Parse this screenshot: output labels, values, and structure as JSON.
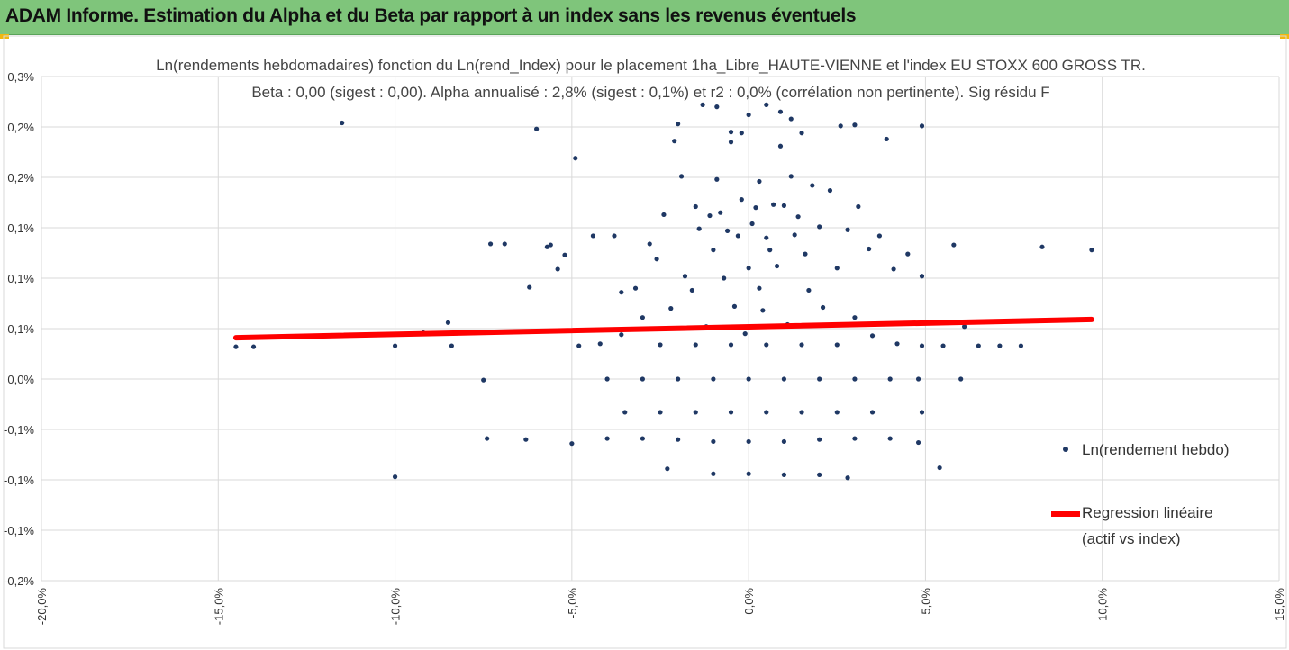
{
  "header": {
    "title": "ADAM Informe. Estimation du Alpha et du Beta par rapport à un index sans les revenus éventuels",
    "background_color": "#7fc57b"
  },
  "chart_data": {
    "type": "scatter",
    "title_line1": "Ln(rendements hebdomadaires) fonction du Ln(rend_Index) pour le placement 1ha_Libre_HAUTE-VIENNE et l'index EU STOXX 600 GROSS TR.",
    "title_line2": "Beta : 0,00 (sigest : 0,00). Alpha annualisé : 2,8% (sigest : 0,1%) et r2 : 0,0% (corrélation non pertinente). Sig résidu F",
    "xlim": [
      -20,
      15
    ],
    "ylim": [
      -0.2,
      0.3
    ],
    "x_ticks": [
      -20,
      -15,
      -10,
      -5,
      0,
      5,
      10,
      15
    ],
    "x_tick_labels": [
      "-20,0%",
      "-15,0%",
      "-10,0%",
      "-5,0%",
      "0,0%",
      "5,0%",
      "10,0%",
      "15,0%"
    ],
    "y_ticks": [
      0.3,
      0.25,
      0.2,
      0.15,
      0.1,
      0.05,
      0.0,
      -0.05,
      -0.1,
      -0.15,
      -0.2
    ],
    "y_tick_labels": [
      "0,3%",
      "0,2%",
      "0,2%",
      "0,1%",
      "0,1%",
      "0,1%",
      "0,0%",
      "-0,1%",
      "-0,1%",
      "-0,1%",
      "-0,2%"
    ],
    "grid": true,
    "legend_position": "right",
    "scatter_color": "#1f3864",
    "regression_color": "#ff0000",
    "regression": {
      "name": "Regression linéaire",
      "name_line2": "(actif vs index)",
      "x": [
        -14.5,
        9.7
      ],
      "y": [
        0.041,
        0.059
      ]
    },
    "series": [
      {
        "name": "Ln(rendement hebdo)",
        "points": [
          [
            -14.5,
            0.032
          ],
          [
            -14.0,
            0.032
          ],
          [
            -10.0,
            0.033
          ],
          [
            -9.2,
            0.046
          ],
          [
            -8.4,
            0.033
          ],
          [
            -8.5,
            0.056
          ],
          [
            -7.3,
            0.134
          ],
          [
            -6.9,
            0.134
          ],
          [
            -7.5,
            -0.001
          ],
          [
            -7.4,
            -0.059
          ],
          [
            -6.2,
            0.091
          ],
          [
            -6.3,
            -0.06
          ],
          [
            -5.7,
            0.131
          ],
          [
            -5.6,
            0.133
          ],
          [
            -5.4,
            0.109
          ],
          [
            -5.2,
            0.123
          ],
          [
            -4.9,
            0.219
          ],
          [
            -5.0,
            -0.064
          ],
          [
            -4.4,
            0.142
          ],
          [
            -3.8,
            0.142
          ],
          [
            -3.6,
            0.086
          ],
          [
            -3.2,
            0.09
          ],
          [
            -2.8,
            0.134
          ],
          [
            -2.6,
            0.119
          ],
          [
            -2.4,
            0.163
          ],
          [
            -2.1,
            0.236
          ],
          [
            -1.9,
            0.201
          ],
          [
            -1.8,
            0.102
          ],
          [
            -1.4,
            0.149
          ],
          [
            -1.3,
            0.272
          ],
          [
            -1.1,
            0.162
          ],
          [
            -0.9,
            0.198
          ],
          [
            -0.6,
            0.147
          ],
          [
            -0.5,
            0.245
          ],
          [
            -0.2,
            0.178
          ],
          [
            0.1,
            0.154
          ],
          [
            0.3,
            0.196
          ],
          [
            0.5,
            0.14
          ],
          [
            0.7,
            0.173
          ],
          [
            0.9,
            0.231
          ],
          [
            1.2,
            0.201
          ],
          [
            1.4,
            0.161
          ],
          [
            1.6,
            0.124
          ],
          [
            1.8,
            0.192
          ],
          [
            2.0,
            0.151
          ],
          [
            2.3,
            0.187
          ],
          [
            2.5,
            0.11
          ],
          [
            2.8,
            0.148
          ],
          [
            3.1,
            0.171
          ],
          [
            3.4,
            0.129
          ],
          [
            3.7,
            0.142
          ],
          [
            4.1,
            0.109
          ],
          [
            4.5,
            0.124
          ],
          [
            4.9,
            0.102
          ],
          [
            5.8,
            0.133
          ],
          [
            8.3,
            0.131
          ],
          [
            9.7,
            0.128
          ],
          [
            -11.5,
            0.254
          ],
          [
            -6.0,
            0.248
          ],
          [
            -2.0,
            0.253
          ],
          [
            -0.9,
            0.27
          ],
          [
            0.0,
            0.262
          ],
          [
            0.5,
            0.272
          ],
          [
            1.2,
            0.258
          ],
          [
            2.6,
            0.251
          ],
          [
            3.0,
            0.252
          ],
          [
            3.9,
            0.238
          ],
          [
            4.9,
            0.251
          ],
          [
            -0.2,
            0.244
          ],
          [
            0.9,
            0.265
          ],
          [
            -0.5,
            0.235
          ],
          [
            1.5,
            0.244
          ],
          [
            -0.8,
            0.165
          ],
          [
            0.2,
            0.17
          ],
          [
            -1.5,
            0.171
          ],
          [
            1.0,
            0.172
          ],
          [
            -0.3,
            0.142
          ],
          [
            0.6,
            0.128
          ],
          [
            -1.0,
            0.128
          ],
          [
            1.3,
            0.143
          ],
          [
            0.0,
            0.11
          ],
          [
            -0.7,
            0.1
          ],
          [
            0.8,
            0.112
          ],
          [
            -1.6,
            0.088
          ],
          [
            1.7,
            0.088
          ],
          [
            0.3,
            0.09
          ],
          [
            -2.2,
            0.07
          ],
          [
            2.1,
            0.071
          ],
          [
            -0.4,
            0.072
          ],
          [
            0.4,
            0.068
          ],
          [
            -3.0,
            0.061
          ],
          [
            3.0,
            0.061
          ],
          [
            -1.2,
            0.052
          ],
          [
            1.1,
            0.054
          ],
          [
            -3.6,
            0.044
          ],
          [
            3.5,
            0.043
          ],
          [
            -0.1,
            0.045
          ],
          [
            -4.2,
            0.035
          ],
          [
            4.2,
            0.035
          ],
          [
            -2.5,
            0.034
          ],
          [
            -1.5,
            0.034
          ],
          [
            -0.5,
            0.034
          ],
          [
            0.5,
            0.034
          ],
          [
            1.5,
            0.034
          ],
          [
            2.5,
            0.034
          ],
          [
            -4.8,
            0.033
          ],
          [
            4.9,
            0.033
          ],
          [
            6.1,
            0.052
          ],
          [
            7.1,
            0.033
          ],
          [
            7.7,
            0.033
          ],
          [
            6.5,
            0.033
          ],
          [
            5.5,
            0.033
          ],
          [
            -4.0,
            0.0
          ],
          [
            -3.0,
            0.0
          ],
          [
            -2.0,
            0.0
          ],
          [
            -1.0,
            0.0
          ],
          [
            0.0,
            0.0
          ],
          [
            1.0,
            0.0
          ],
          [
            2.0,
            0.0
          ],
          [
            3.0,
            0.0
          ],
          [
            4.0,
            0.0
          ],
          [
            4.8,
            0.0
          ],
          [
            6.0,
            0.0
          ],
          [
            -3.5,
            -0.033
          ],
          [
            -2.5,
            -0.033
          ],
          [
            -1.5,
            -0.033
          ],
          [
            -0.5,
            -0.033
          ],
          [
            0.5,
            -0.033
          ],
          [
            1.5,
            -0.033
          ],
          [
            2.5,
            -0.033
          ],
          [
            3.5,
            -0.033
          ],
          [
            4.9,
            -0.033
          ],
          [
            -4.0,
            -0.059
          ],
          [
            -3.0,
            -0.059
          ],
          [
            -2.0,
            -0.06
          ],
          [
            -1.0,
            -0.062
          ],
          [
            0.0,
            -0.062
          ],
          [
            1.0,
            -0.062
          ],
          [
            2.0,
            -0.06
          ],
          [
            3.0,
            -0.059
          ],
          [
            4.0,
            -0.059
          ],
          [
            4.8,
            -0.063
          ],
          [
            -2.3,
            -0.089
          ],
          [
            -1.0,
            -0.094
          ],
          [
            0.0,
            -0.094
          ],
          [
            1.0,
            -0.095
          ],
          [
            2.0,
            -0.095
          ],
          [
            2.8,
            -0.098
          ],
          [
            5.4,
            -0.088
          ],
          [
            -10.0,
            -0.097
          ]
        ]
      }
    ]
  }
}
